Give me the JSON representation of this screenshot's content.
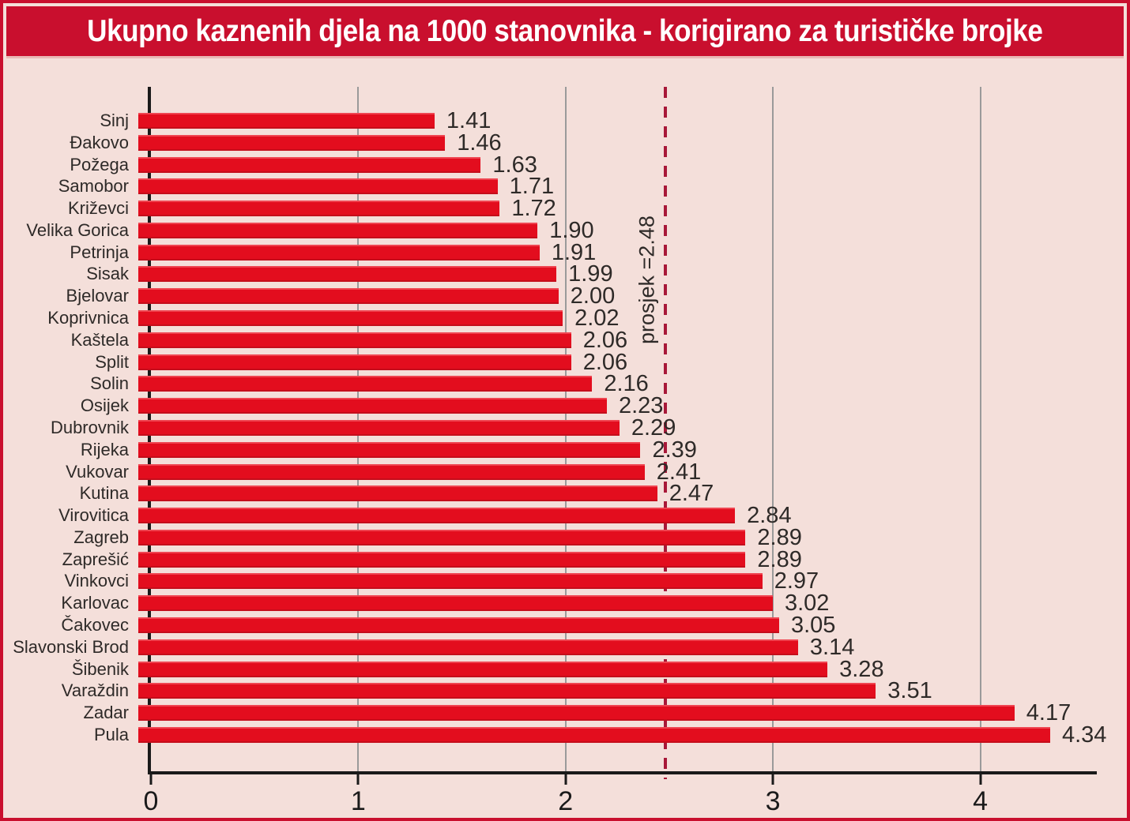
{
  "header": {
    "title": "Ukupno kaznenih djela na 1000 stanovnika - korigirano za turističke brojke"
  },
  "chart_data": {
    "type": "bar",
    "orientation": "horizontal",
    "title": "Ukupno kaznenih djela na 1000 stanovnika - korigirano za turističke brojke",
    "categories": [
      "Sinj",
      "Đakovo",
      "Požega",
      "Samobor",
      "Križevci",
      "Velika Gorica",
      "Petrinja",
      "Sisak",
      "Bjelovar",
      "Koprivnica",
      "Kaštela",
      "Split",
      "Solin",
      "Osijek",
      "Dubrovnik",
      "Rijeka",
      "Vukovar",
      "Kutina",
      "Virovitica",
      "Zagreb",
      "Zaprešić",
      "Vinkovci",
      "Karlovac",
      "Čakovec",
      "Slavonski Brod",
      "Šibenik",
      "Varaždin",
      "Zadar",
      "Pula"
    ],
    "values": [
      1.41,
      1.46,
      1.63,
      1.71,
      1.72,
      1.9,
      1.91,
      1.99,
      2.0,
      2.02,
      2.06,
      2.06,
      2.16,
      2.23,
      2.29,
      2.39,
      2.41,
      2.47,
      2.84,
      2.89,
      2.89,
      2.97,
      3.02,
      3.05,
      3.14,
      3.28,
      3.51,
      4.17,
      4.34
    ],
    "value_labels": [
      "1.41",
      "1.46",
      "1.63",
      "1.71",
      "1.72",
      "1.90",
      "1.91",
      "1.99",
      "2.00",
      "2.02",
      "2.06",
      "2.06",
      "2.16",
      "2.23",
      "2.29",
      "2.39",
      "2.41",
      "2.47",
      "2.84",
      "2.89",
      "2.89",
      "2.97",
      "3.02",
      "3.05",
      "3.14",
      "3.28",
      "3.51",
      "4.17",
      "4.34"
    ],
    "average": {
      "value": 2.48,
      "label": "prosjek =2.48"
    },
    "x_axis": {
      "tick_labels": [
        "0",
        "1",
        "2",
        "3",
        "4"
      ],
      "tick_values": [
        0,
        1,
        2,
        3,
        4
      ],
      "min": 0,
      "plot_max": 4.562
    },
    "grid": "vertical gridlines at integer ticks, legend none",
    "colors": {
      "background": "#f4dfda",
      "banner": "#c90f2e",
      "bar": "#e30d1e",
      "avg_line": "#a81838",
      "grid": "#9a9a9a",
      "axis": "#1a1a1a",
      "text": "#2e2a28",
      "title_text": "#ffffff"
    }
  }
}
